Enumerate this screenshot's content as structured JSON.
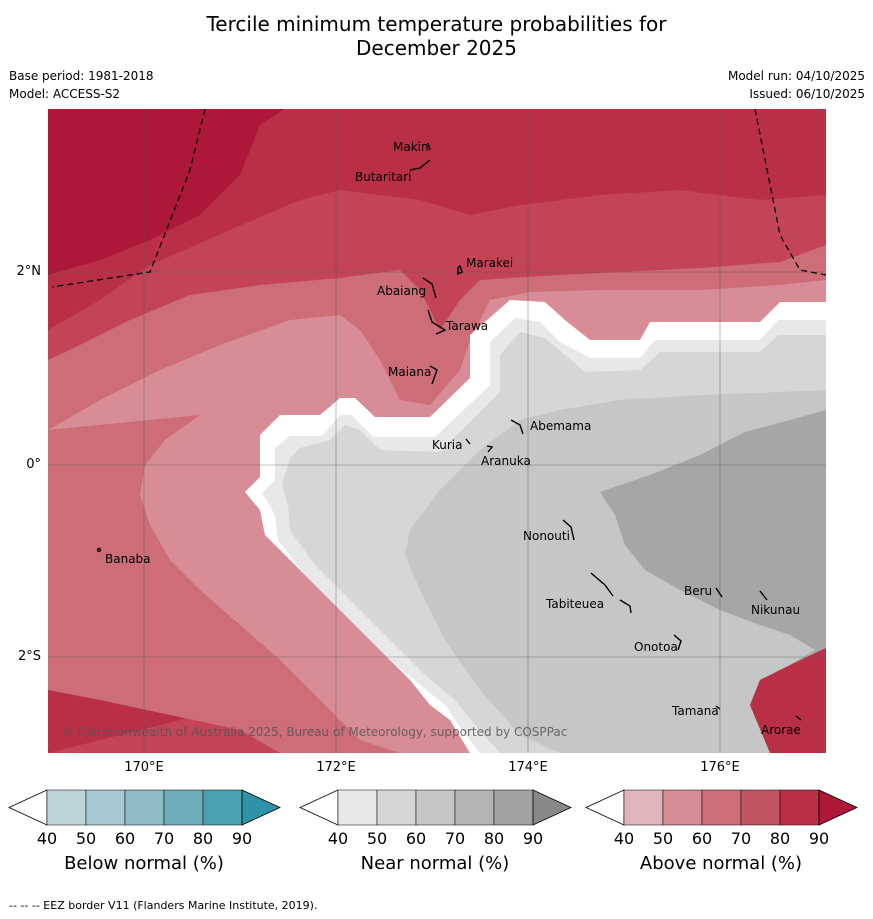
{
  "title_line1": "Tercile minimum temperature probabilities for",
  "title_line2": "December 2025",
  "base_period": "Base period: 1981-2018",
  "model": "Model: ACCESS-S2",
  "model_run": "Model run: 04/10/2025",
  "issued": "Issued: 06/10/2025",
  "copyright": "© Commonwealth of Australia 2025, Bureau of Meteorology, supported by COSPPac",
  "footer": "--  --  -- EEZ border V11 (Flanders Marine Institute, 2019).",
  "lon_labels": [
    "170°E",
    "172°E",
    "174°E",
    "176°E"
  ],
  "lat_labels": [
    "2°N",
    "0°",
    "2°S"
  ],
  "islands": [
    "Makin",
    "Butaritari",
    "Marakei",
    "Abaiang",
    "Tarawa",
    "Maiana",
    "Abemama",
    "Kuria",
    "Aranuka",
    "Nonouti",
    "Beru",
    "Nikunau",
    "Tabiteuea",
    "Onotoa",
    "Tamana",
    "Arorae",
    "Banaba"
  ],
  "colorbars": [
    {
      "label": "Below normal (%)",
      "ticks": [
        "40",
        "50",
        "60",
        "70",
        "80",
        "90"
      ],
      "colors": [
        "#ffffff",
        "#bdd3da",
        "#a6c8d0",
        "#8dbbc6",
        "#6fadbb",
        "#4ba1b1",
        "#2e93a6"
      ]
    },
    {
      "label": "Near normal (%)",
      "ticks": [
        "40",
        "50",
        "60",
        "70",
        "80",
        "90"
      ],
      "colors": [
        "#ffffff",
        "#e8e8e8",
        "#d6d6d6",
        "#c6c6c6",
        "#b4b4b4",
        "#a2a2a2",
        "#888888"
      ]
    },
    {
      "label": "Above normal (%)",
      "ticks": [
        "40",
        "50",
        "60",
        "70",
        "80",
        "90"
      ],
      "colors": [
        "#ffffff",
        "#e0b5bc",
        "#d88c96",
        "#cc6d78",
        "#c35562",
        "#b82f46",
        "#ad1838"
      ]
    }
  ]
}
